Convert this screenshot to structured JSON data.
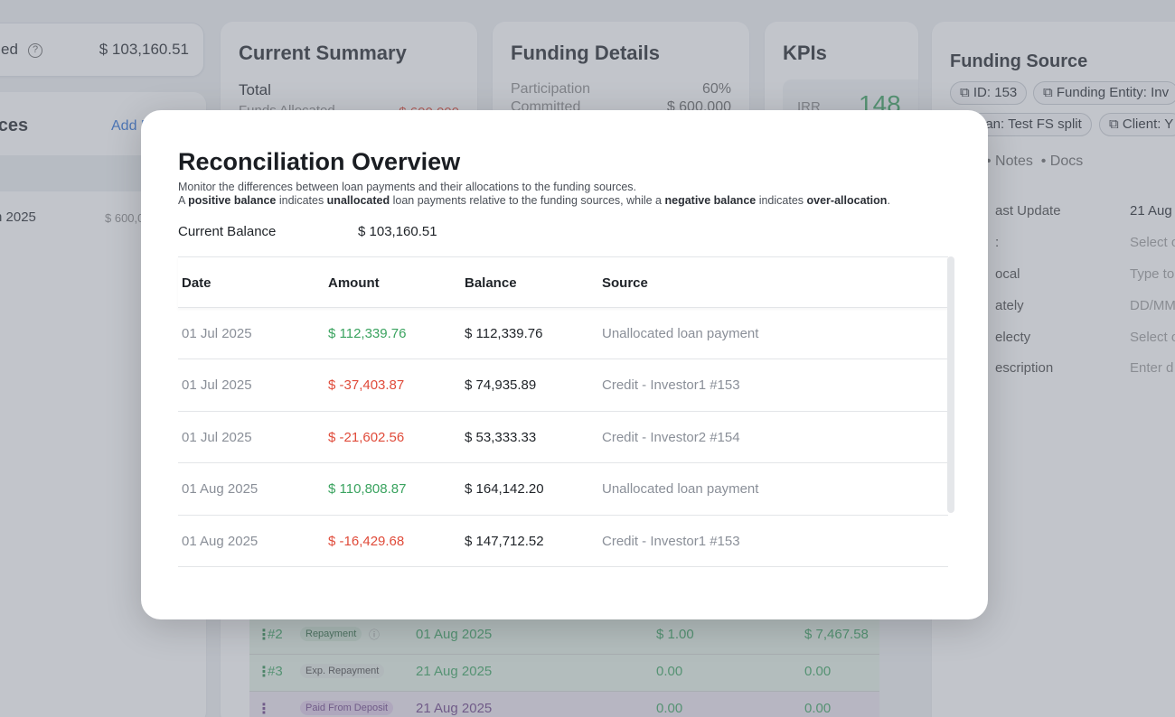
{
  "background": {
    "stat_card": {
      "label": "ed",
      "help": "?",
      "value": "$ 103,160.51"
    },
    "sources_card": {
      "title": "rces",
      "add_link": "Add N",
      "row_date": "n 2025",
      "row_amount": "$ 600,0"
    },
    "summary_card": {
      "title": "Current Summary",
      "total_label": "Total",
      "funds_label": "Funds Allocated",
      "funds_value": "$ 600,000"
    },
    "funding_card": {
      "title": "Funding Details",
      "participation_label": "Participation",
      "participation_value": "60%",
      "committed_label": "Committed",
      "committed_value": "$ 600,000"
    },
    "kpi_card": {
      "title": "KPIs",
      "irr_label": "IRR",
      "irr_value": "148"
    },
    "funding_source_card": {
      "title": "Funding Source",
      "chips": [
        {
          "label": "ID: 153"
        },
        {
          "label": "Funding Entity: Inv"
        },
        {
          "label": "oan: Test FS split"
        },
        {
          "label": "Client: Y"
        }
      ],
      "nav": [
        "Notes",
        "Docs"
      ],
      "fields": [
        {
          "label": "ast Update",
          "value": "21 Aug"
        },
        {
          "label": ":",
          "value": "Select o"
        },
        {
          "label": "ocal",
          "value": "Type to"
        },
        {
          "label": "ately",
          "value": "DD/MM"
        },
        {
          "label": "electy",
          "value": "Select o"
        },
        {
          "label": "escription",
          "value": "Enter d"
        }
      ]
    },
    "bottom_rows": [
      {
        "num": "#2",
        "tag": "Repayment",
        "date": "01 Aug 2025",
        "amount1": "$ 1.00",
        "amount2": "$ 7,467.58"
      },
      {
        "num": "#3",
        "tag": "Exp. Repayment",
        "date": "21 Aug 2025",
        "amount1": "0.00",
        "amount2": "0.00"
      },
      {
        "num": "",
        "tag": "Paid From Deposit",
        "date": "21 Aug 2025",
        "amount1": "0.00",
        "amount2": "0.00"
      }
    ]
  },
  "modal": {
    "title": "Reconciliation Overview",
    "desc_line1": "Monitor the differences between loan payments and their allocations to the funding sources.",
    "desc_a": "A ",
    "desc_b1": "positive balance",
    "desc_c": " indicates ",
    "desc_b2": "unallocated",
    "desc_d": " loan payments relative to the funding sources, while a ",
    "desc_b3": "negative balance",
    "desc_e": " indicates ",
    "desc_b4": "over-allocation",
    "desc_f": ".",
    "current_balance_label": "Current Balance",
    "current_balance_value": "$ 103,160.51",
    "columns": {
      "date": "Date",
      "amount": "Amount",
      "balance": "Balance",
      "source": "Source"
    },
    "rows": [
      {
        "date": "01 Jul 2025",
        "amount": "$ 112,339.76",
        "positive": true,
        "balance": "$ 112,339.76",
        "source": "Unallocated loan payment"
      },
      {
        "date": "01 Jul 2025",
        "amount": "$ -37,403.87",
        "positive": false,
        "balance": "$ 74,935.89",
        "source": "Credit - Investor1 #153"
      },
      {
        "date": "01 Jul 2025",
        "amount": "$ -21,602.56",
        "positive": false,
        "balance": "$ 53,333.33",
        "source": "Credit - Investor2 #154"
      },
      {
        "date": "01 Aug 2025",
        "amount": "$ 110,808.87",
        "positive": true,
        "balance": "$ 164,142.20",
        "source": "Unallocated loan payment"
      },
      {
        "date": "01 Aug 2025",
        "amount": "$ -16,429.68",
        "positive": false,
        "balance": "$ 147,712.52",
        "source": "Credit - Investor1 #153"
      }
    ]
  }
}
